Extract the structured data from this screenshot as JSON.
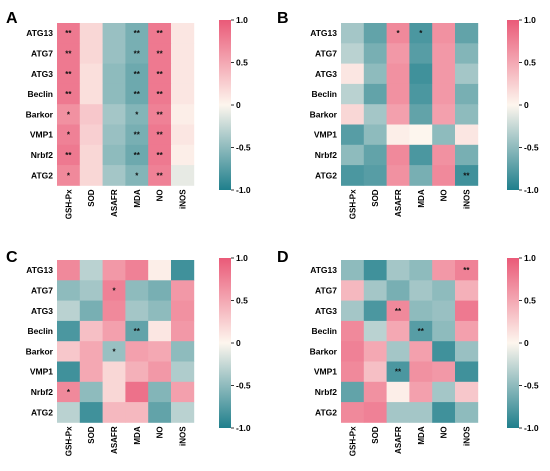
{
  "colors": {
    "negative": "#1f7f8c",
    "zero": "#fdf6ee",
    "positive": "#ea5a78"
  },
  "colorbar_ticks": [
    "1.0",
    "0.5",
    "0",
    "-0.5",
    "-1.0"
  ],
  "chart_data": [
    {
      "type": "heatmap",
      "panel": "A",
      "rows": [
        "ATG13",
        "ATG7",
        "ATG3",
        "Beclin",
        "Barkor",
        "VMP1",
        "Nrbf2",
        "ATG2"
      ],
      "columns": [
        "GSH-Px",
        "SOD",
        "ASAFR",
        "MDA",
        "NO",
        "iNOS"
      ],
      "value_range": [
        -1,
        1
      ],
      "values": [
        [
          0.8,
          0.2,
          -0.45,
          -0.6,
          0.8,
          0.1
        ],
        [
          0.8,
          0.2,
          -0.45,
          -0.6,
          0.8,
          0.1
        ],
        [
          0.8,
          0.15,
          -0.5,
          -0.65,
          0.8,
          0.1
        ],
        [
          0.8,
          0.15,
          -0.5,
          -0.65,
          0.8,
          0.1
        ],
        [
          0.65,
          0.3,
          -0.4,
          -0.55,
          0.75,
          0.05
        ],
        [
          0.75,
          0.25,
          -0.45,
          -0.6,
          0.8,
          0.1
        ],
        [
          0.8,
          0.2,
          -0.5,
          -0.65,
          0.8,
          0.05
        ],
        [
          0.7,
          0.2,
          -0.4,
          -0.55,
          0.75,
          -0.1
        ]
      ],
      "significance": [
        [
          "**",
          "",
          "",
          "**",
          "**",
          ""
        ],
        [
          "**",
          "",
          "",
          "**",
          "**",
          ""
        ],
        [
          "**",
          "",
          "",
          "**",
          "**",
          ""
        ],
        [
          "**",
          "",
          "",
          "**",
          "**",
          ""
        ],
        [
          "*",
          "",
          "",
          "*",
          "**",
          ""
        ],
        [
          "*",
          "",
          "",
          "**",
          "**",
          ""
        ],
        [
          "**",
          "",
          "",
          "**",
          "**",
          ""
        ],
        [
          "*",
          "",
          "",
          "*",
          "**",
          ""
        ]
      ]
    },
    {
      "type": "heatmap",
      "panel": "B",
      "rows": [
        "ATG13",
        "ATG7",
        "ATG3",
        "Beclin",
        "Barkor",
        "VMP1",
        "Nrbf2",
        "ATG2"
      ],
      "columns": [
        "GSH-Px",
        "SOD",
        "ASAFR",
        "MDA",
        "NO",
        "iNOS"
      ],
      "value_range": [
        -1,
        1
      ],
      "values": [
        [
          -0.4,
          -0.7,
          0.7,
          -0.8,
          0.65,
          -0.7
        ],
        [
          -0.3,
          -0.6,
          0.6,
          -0.75,
          0.6,
          -0.55
        ],
        [
          0.1,
          -0.5,
          0.65,
          -0.85,
          0.6,
          -0.4
        ],
        [
          -0.3,
          -0.7,
          0.65,
          -0.8,
          0.6,
          -0.6
        ],
        [
          0.2,
          -0.4,
          0.55,
          -0.7,
          0.55,
          -0.5
        ],
        [
          -0.75,
          -0.5,
          0.05,
          0.0,
          -0.5,
          0.1
        ],
        [
          -0.5,
          -0.7,
          0.7,
          -0.8,
          0.65,
          -0.6
        ],
        [
          -0.8,
          -0.75,
          0.65,
          -0.6,
          0.7,
          -0.85
        ]
      ],
      "significance": [
        [
          "",
          "",
          "*",
          "*",
          "",
          ""
        ],
        [
          "",
          "",
          "",
          "",
          "",
          ""
        ],
        [
          "",
          "",
          "",
          "",
          "",
          ""
        ],
        [
          "",
          "",
          "",
          "",
          "",
          ""
        ],
        [
          "",
          "",
          "",
          "",
          "",
          ""
        ],
        [
          "",
          "",
          "",
          "",
          "",
          ""
        ],
        [
          "",
          "",
          "",
          "",
          "",
          ""
        ],
        [
          "",
          "",
          "",
          "",
          "",
          "**"
        ]
      ]
    },
    {
      "type": "heatmap",
      "panel": "C",
      "rows": [
        "ATG13",
        "ATG7",
        "ATG3",
        "Beclin",
        "Barkor",
        "VMP1",
        "Nrbf2",
        "ATG2"
      ],
      "columns": [
        "GSH-Px",
        "SOD",
        "ASAFR",
        "MDA",
        "NO",
        "iNOS"
      ],
      "value_range": [
        -1,
        1
      ],
      "values": [
        [
          0.7,
          -0.3,
          0.6,
          0.75,
          0.05,
          -0.85
        ],
        [
          -0.5,
          -0.4,
          0.75,
          -0.5,
          -0.6,
          0.6
        ],
        [
          -0.3,
          -0.6,
          0.7,
          -0.4,
          -0.5,
          0.65
        ],
        [
          -0.8,
          0.35,
          0.55,
          -0.7,
          0.1,
          0.6
        ],
        [
          0.3,
          0.5,
          -0.45,
          0.55,
          0.5,
          -0.5
        ],
        [
          -0.85,
          0.5,
          0.2,
          0.45,
          0.6,
          -0.35
        ],
        [
          0.7,
          -0.5,
          0.2,
          0.85,
          -0.55,
          0.55
        ],
        [
          -0.3,
          -0.85,
          0.4,
          0.4,
          -0.7,
          -0.3
        ]
      ],
      "significance": [
        [
          "",
          "",
          "",
          "",
          "",
          ""
        ],
        [
          "",
          "",
          "*",
          "",
          "",
          ""
        ],
        [
          "",
          "",
          "",
          "",
          "",
          ""
        ],
        [
          "",
          "",
          "",
          "**",
          "",
          ""
        ],
        [
          "",
          "",
          "*",
          "",
          "",
          ""
        ],
        [
          "",
          "",
          "",
          "",
          "",
          ""
        ],
        [
          "*",
          "",
          "",
          "",
          "",
          ""
        ],
        [
          "",
          "",
          "",
          "",
          "",
          ""
        ]
      ]
    },
    {
      "type": "heatmap",
      "panel": "D",
      "rows": [
        "ATG13",
        "ATG7",
        "ATG3",
        "Beclin",
        "Barkor",
        "VMP1",
        "Nrbf2",
        "ATG2"
      ],
      "columns": [
        "GSH-Px",
        "SOD",
        "ASAFR",
        "MDA",
        "NO",
        "iNOS"
      ],
      "value_range": [
        -1,
        1
      ],
      "values": [
        [
          -0.5,
          -0.85,
          -0.4,
          -0.5,
          0.6,
          0.75
        ],
        [
          0.4,
          -0.4,
          -0.6,
          -0.4,
          -0.5,
          0.45
        ],
        [
          -0.4,
          -0.8,
          0.7,
          -0.5,
          -0.45,
          0.8
        ],
        [
          0.7,
          -0.3,
          0.5,
          -0.75,
          -0.5,
          0.55
        ],
        [
          0.75,
          0.5,
          -0.4,
          0.55,
          -0.85,
          -0.45
        ],
        [
          0.7,
          0.35,
          -0.8,
          0.65,
          0.6,
          -0.85
        ],
        [
          -0.7,
          0.65,
          0.05,
          0.55,
          -0.4,
          0.3
        ],
        [
          0.7,
          0.75,
          -0.4,
          -0.4,
          -0.85,
          -0.5
        ]
      ],
      "significance": [
        [
          "",
          "",
          "",
          "",
          "",
          "**"
        ],
        [
          "",
          "",
          "",
          "",
          "",
          ""
        ],
        [
          "",
          "",
          "**",
          "",
          "",
          ""
        ],
        [
          "",
          "",
          "",
          "**",
          "",
          ""
        ],
        [
          "",
          "",
          "",
          "",
          "",
          ""
        ],
        [
          "",
          "",
          "**",
          "",
          "",
          ""
        ],
        [
          "",
          "",
          "",
          "",
          "",
          ""
        ],
        [
          "",
          "",
          "",
          "",
          "",
          ""
        ]
      ]
    }
  ]
}
